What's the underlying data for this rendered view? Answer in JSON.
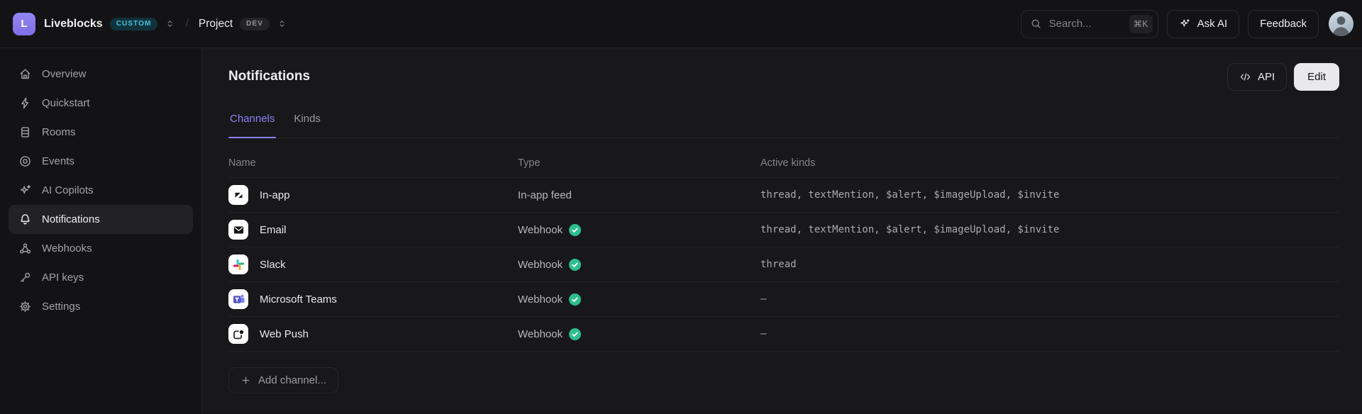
{
  "topbar": {
    "logo_letter": "L",
    "org_name": "Liveblocks",
    "org_badge": "CUSTOM",
    "separator": "/",
    "project_name": "Project",
    "project_badge": "DEV",
    "search": {
      "placeholder": "Search...",
      "shortcut": "⌘K"
    },
    "ask_ai_label": "Ask AI",
    "feedback_label": "Feedback"
  },
  "sidebar": {
    "items": [
      {
        "label": "Overview",
        "icon": "home-icon",
        "active": false
      },
      {
        "label": "Quickstart",
        "icon": "bolt-icon",
        "active": false
      },
      {
        "label": "Rooms",
        "icon": "rooms-icon",
        "active": false
      },
      {
        "label": "Events",
        "icon": "events-icon",
        "active": false
      },
      {
        "label": "AI Copilots",
        "icon": "sparkles-icon",
        "active": false
      },
      {
        "label": "Notifications",
        "icon": "bell-icon",
        "active": true
      },
      {
        "label": "Webhooks",
        "icon": "webhook-icon",
        "active": false
      },
      {
        "label": "API keys",
        "icon": "key-icon",
        "active": false
      },
      {
        "label": "Settings",
        "icon": "gear-icon",
        "active": false
      }
    ]
  },
  "main": {
    "title": "Notifications",
    "api_button_label": "API",
    "edit_button_label": "Edit",
    "tabs": [
      {
        "label": "Channels",
        "active": true
      },
      {
        "label": "Kinds",
        "active": false
      }
    ],
    "table": {
      "columns": [
        "Name",
        "Type",
        "Active kinds"
      ],
      "rows": [
        {
          "name": "In-app",
          "icon": "liveblocks-inbox-icon",
          "type": "In-app feed",
          "verified": false,
          "active_kinds": "thread, textMention, $alert, $imageUpload, $invite"
        },
        {
          "name": "Email",
          "icon": "email-icon",
          "type": "Webhook",
          "verified": true,
          "active_kinds": "thread, textMention, $alert, $imageUpload, $invite"
        },
        {
          "name": "Slack",
          "icon": "slack-icon",
          "type": "Webhook",
          "verified": true,
          "active_kinds": "thread"
        },
        {
          "name": "Microsoft Teams",
          "icon": "microsoft-teams-icon",
          "type": "Webhook",
          "verified": true,
          "active_kinds": "–"
        },
        {
          "name": "Web Push",
          "icon": "web-push-icon",
          "type": "Webhook",
          "verified": true,
          "active_kinds": "–"
        }
      ]
    },
    "add_channel_label": "Add channel..."
  },
  "colors": {
    "accent": "#8d80f3",
    "accent_underline": "#7c6df0",
    "verified_green": "#2ebe8c",
    "badge_cyan_text": "#45c4dd",
    "badge_cyan_bg": "#11323c",
    "slack": [
      "#36C5F0",
      "#2EB67D",
      "#ECB22E",
      "#E01E5A"
    ],
    "teams_purple": "#4F55C0"
  }
}
